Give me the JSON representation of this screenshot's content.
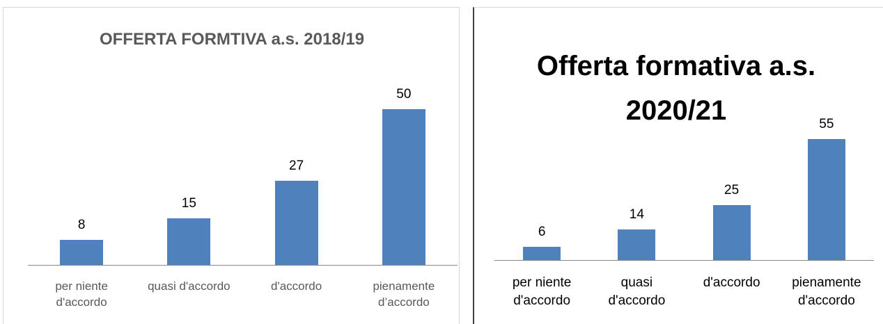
{
  "chart_data": [
    {
      "type": "bar",
      "title": "OFFERTA FORMTIVA a.s. 2018/19",
      "categories": [
        "per niente d'accordo",
        "quasi d'accordo",
        "d'accordo",
        "pienamente d’accordo"
      ],
      "values": [
        8,
        15,
        27,
        50
      ],
      "color": "#4f81bd"
    },
    {
      "type": "bar",
      "title": "Offerta formativa a.s. 2020/21",
      "categories": [
        "per niente d'accordo",
        "quasi d'accordo",
        "d'accordo",
        "pienamente d'accordo"
      ],
      "values": [
        6,
        14,
        25,
        55
      ],
      "color": "#4f81bd"
    }
  ]
}
